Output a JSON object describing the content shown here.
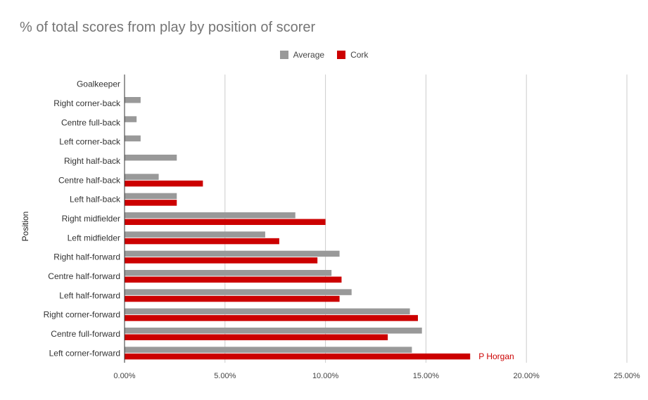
{
  "chart_data": {
    "type": "bar",
    "orientation": "horizontal",
    "title": "% of total scores from play by position of scorer",
    "ylabel": "Position",
    "xlabel": "",
    "xlim": [
      0,
      25
    ],
    "x_ticks": [
      "0.00%",
      "5.00%",
      "10.00%",
      "15.00%",
      "20.00%",
      "25.00%"
    ],
    "x_tick_values": [
      0,
      5,
      10,
      15,
      20,
      25
    ],
    "grid": true,
    "legend_position": "top",
    "categories": [
      "Goalkeeper",
      "Right corner-back",
      "Centre full-back",
      "Left corner-back",
      "Right half-back",
      "Centre half-back",
      "Left half-back",
      "Right midfielder",
      "Left midfielder",
      "Right half-forward",
      "Centre half-forward",
      "Left half-forward",
      "Right corner-forward",
      "Centre full-forward",
      "Left corner-forward"
    ],
    "series": [
      {
        "name": "Average",
        "color": "#999999",
        "values": [
          0,
          0.8,
          0.6,
          0.8,
          2.6,
          1.7,
          2.6,
          8.5,
          7.0,
          10.7,
          10.3,
          11.3,
          14.2,
          14.8,
          14.3
        ]
      },
      {
        "name": "Cork",
        "color": "#cc0000",
        "values": [
          0,
          0,
          0,
          0,
          0,
          3.9,
          2.6,
          10.0,
          7.7,
          9.6,
          10.8,
          10.7,
          14.6,
          13.1,
          17.2
        ]
      }
    ],
    "annotations": [
      {
        "text": "P Horgan",
        "category": "Left corner-forward",
        "series": "Cork",
        "color": "#cc0000"
      }
    ]
  }
}
